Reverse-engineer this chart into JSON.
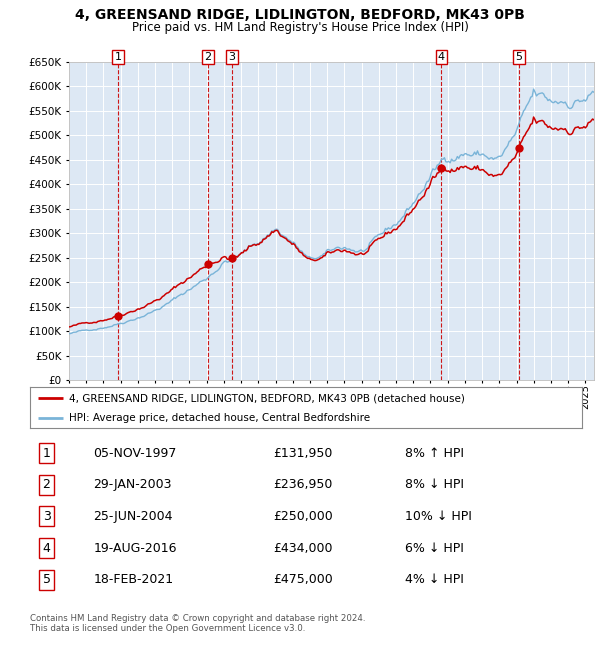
{
  "title": "4, GREENSAND RIDGE, LIDLINGTON, BEDFORD, MK43 0PB",
  "subtitle": "Price paid vs. HM Land Registry's House Price Index (HPI)",
  "legend_line1": "4, GREENSAND RIDGE, LIDLINGTON, BEDFORD, MK43 0PB (detached house)",
  "legend_line2": "HPI: Average price, detached house, Central Bedfordshire",
  "footer_line1": "Contains HM Land Registry data © Crown copyright and database right 2024.",
  "footer_line2": "This data is licensed under the Open Government Licence v3.0.",
  "sales": [
    {
      "num": 1,
      "date": "05-NOV-1997",
      "price": 131950,
      "year": 1997.85,
      "pct": "8%",
      "dir": "↑"
    },
    {
      "num": 2,
      "date": "29-JAN-2003",
      "price": 236950,
      "year": 2003.08,
      "pct": "8%",
      "dir": "↓"
    },
    {
      "num": 3,
      "date": "25-JUN-2004",
      "price": 250000,
      "year": 2004.48,
      "pct": "10%",
      "dir": "↓"
    },
    {
      "num": 4,
      "date": "19-AUG-2016",
      "price": 434000,
      "year": 2016.63,
      "pct": "6%",
      "dir": "↓"
    },
    {
      "num": 5,
      "date": "18-FEB-2021",
      "price": 475000,
      "year": 2021.13,
      "pct": "4%",
      "dir": "↓"
    }
  ],
  "hpi_color": "#7ab4d8",
  "price_color": "#cc0000",
  "background_color": "#dde8f4",
  "grid_color": "#ffffff",
  "ylim": [
    0,
    650000
  ],
  "xlim_start": 1995.0,
  "xlim_end": 2025.5,
  "yticks": [
    0,
    50000,
    100000,
    150000,
    200000,
    250000,
    300000,
    350000,
    400000,
    450000,
    500000,
    550000,
    600000,
    650000
  ],
  "xtick_years": [
    1995,
    1996,
    1997,
    1998,
    1999,
    2000,
    2001,
    2002,
    2003,
    2004,
    2005,
    2006,
    2007,
    2008,
    2009,
    2010,
    2011,
    2012,
    2013,
    2014,
    2015,
    2016,
    2017,
    2018,
    2019,
    2020,
    2021,
    2022,
    2023,
    2024,
    2025
  ]
}
